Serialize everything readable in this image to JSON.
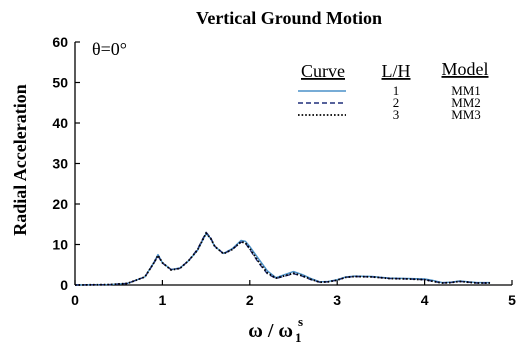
{
  "chart_data": {
    "type": "line",
    "title": "Vertical Ground Motion",
    "xlabel_main": "ω / ω",
    "xlabel_sub": "1",
    "xlabel_sup": "s",
    "ylabel": "Radial Acceleration",
    "annotation": "θ=0°",
    "xlim": [
      0,
      5
    ],
    "ylim": [
      0,
      60
    ],
    "xticks": [
      "0",
      "1",
      "2",
      "3",
      "4",
      "5"
    ],
    "yticks": [
      "0",
      "10",
      "20",
      "30",
      "40",
      "50",
      "60"
    ],
    "grid": false,
    "legend": {
      "placement": "top-right",
      "headers": {
        "curve": "Curve",
        "lh": "L/H",
        "model": "Model"
      },
      "rows": [
        {
          "lh": "1",
          "model": "MM1"
        },
        {
          "lh": "2",
          "model": "MM2"
        },
        {
          "lh": "3",
          "model": "MM3"
        }
      ]
    },
    "series": [
      {
        "color": "#4a90c8",
        "dash": "solid",
        "x": [
          0,
          0.4,
          0.6,
          0.8,
          0.9,
          0.95,
          1.0,
          1.1,
          1.2,
          1.3,
          1.4,
          1.5,
          1.55,
          1.6,
          1.7,
          1.8,
          1.9,
          1.95,
          2.0,
          2.1,
          2.2,
          2.3,
          2.4,
          2.5,
          2.6,
          2.7,
          2.8,
          2.9,
          3.0,
          3.1,
          3.2,
          3.4,
          3.6,
          3.8,
          4.0,
          4.1,
          4.2,
          4.3,
          4.4,
          4.5,
          4.6,
          4.75
        ],
        "y": [
          0,
          0.1,
          0.4,
          2,
          5.5,
          7.5,
          5.5,
          3.8,
          4.2,
          6,
          8.5,
          12.7,
          11.5,
          9.5,
          7.8,
          9,
          11,
          10.8,
          9.5,
          6.5,
          3.5,
          1.8,
          2.6,
          3.3,
          2.6,
          1.6,
          0.8,
          0.9,
          1.3,
          2,
          2.2,
          2.1,
          1.7,
          1.6,
          1.5,
          1.1,
          0.6,
          0.7,
          1.0,
          0.8,
          0.6,
          0.6
        ]
      },
      {
        "color": "#1f2f7a",
        "dash": "dashed",
        "x": [
          0,
          0.4,
          0.6,
          0.8,
          0.9,
          0.95,
          1.0,
          1.1,
          1.2,
          1.3,
          1.4,
          1.5,
          1.55,
          1.6,
          1.7,
          1.8,
          1.9,
          1.95,
          2.0,
          2.1,
          2.2,
          2.3,
          2.4,
          2.5,
          2.6,
          2.7,
          2.8,
          2.9,
          3.0,
          3.1,
          3.2,
          3.4,
          3.6,
          3.8,
          4.0,
          4.1,
          4.2,
          4.3,
          4.4,
          4.5,
          4.6,
          4.75
        ],
        "y": [
          0,
          0.1,
          0.4,
          2,
          5.3,
          7.2,
          5.4,
          3.8,
          4.1,
          6,
          8.8,
          13,
          11.7,
          9.6,
          7.7,
          8.8,
          10.6,
          10.3,
          8.8,
          5.5,
          2.8,
          1.6,
          2.2,
          2.8,
          2.2,
          1.3,
          0.7,
          0.8,
          1.2,
          1.9,
          2.1,
          2.0,
          1.6,
          1.5,
          1.3,
          0.9,
          0.5,
          0.6,
          0.9,
          0.7,
          0.5,
          0.5
        ]
      },
      {
        "color": "#000000",
        "dash": "dotted",
        "x": [
          0,
          0.4,
          0.6,
          0.8,
          0.9,
          0.95,
          1.0,
          1.1,
          1.2,
          1.3,
          1.4,
          1.5,
          1.55,
          1.6,
          1.7,
          1.8,
          1.9,
          1.95,
          2.0,
          2.1,
          2.2,
          2.3,
          2.4,
          2.5,
          2.6,
          2.7,
          2.8,
          2.9,
          3.0,
          3.1,
          3.2,
          3.4,
          3.6,
          3.8,
          4.0,
          4.1,
          4.2,
          4.3,
          4.4,
          4.5,
          4.6,
          4.75
        ],
        "y": [
          0,
          0.1,
          0.4,
          2,
          5.4,
          7.3,
          5.5,
          3.7,
          4.1,
          6,
          8.6,
          12.8,
          11.6,
          9.5,
          7.7,
          8.8,
          10.7,
          10.4,
          9.0,
          5.8,
          3.0,
          1.7,
          2.3,
          2.9,
          2.3,
          1.4,
          0.7,
          0.8,
          1.2,
          1.9,
          2.1,
          2.0,
          1.6,
          1.5,
          1.3,
          0.9,
          0.5,
          0.6,
          0.9,
          0.7,
          0.5,
          0.5
        ]
      }
    ]
  }
}
